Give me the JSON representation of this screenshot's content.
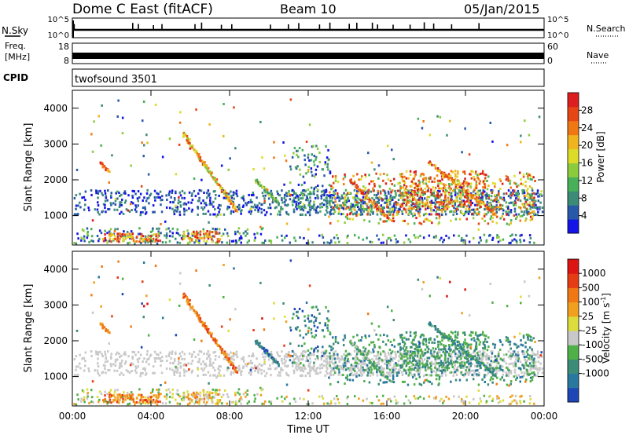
{
  "header": {
    "station": "Dome C East (fitACF)",
    "beam": "Beam 10",
    "date": "05/Jan/2015"
  },
  "strips": {
    "nsky": {
      "label": "N.Sky",
      "ticks": [
        "10^5",
        "10^0"
      ]
    },
    "freq": {
      "label_line1": "Freq.",
      "label_line2": "[MHz]",
      "ticks": [
        "18",
        "8"
      ]
    },
    "nsearch": {
      "label": "N.Search",
      "ticks": [
        "10^5",
        "10^0"
      ]
    },
    "nave": {
      "label": "Nave",
      "ticks": [
        "60",
        "0"
      ]
    },
    "cpid": {
      "label": "CPID",
      "value": "twofsound 3501"
    }
  },
  "chart_data": [
    {
      "type": "heatmap",
      "name": "power",
      "xlabel": "",
      "ylabel": "Slant Range [km]",
      "xlim": [
        0,
        24
      ],
      "ylim": [
        180,
        4500
      ],
      "yticks": [
        1000,
        2000,
        3000,
        4000
      ],
      "colorbar": {
        "label": "Power [dB]",
        "ticks": [
          4,
          8,
          12,
          16,
          20,
          24,
          28
        ],
        "range": [
          0,
          32
        ],
        "colors": [
          "#1414e6",
          "#2858a8",
          "#3c8a78",
          "#48b058",
          "#8ccc3c",
          "#dcdc28",
          "#f0b41e",
          "#f07814",
          "#e64614",
          "#dc1e1e"
        ]
      }
    },
    {
      "type": "heatmap",
      "name": "velocity",
      "xlabel": "Time UT",
      "ylabel": "Slant Range [km]",
      "xlim": [
        0,
        24
      ],
      "ylim": [
        180,
        4500
      ],
      "yticks": [
        1000,
        2000,
        3000,
        4000
      ],
      "xticklabels": [
        "00:00",
        "04:00",
        "08:00",
        "12:00",
        "16:00",
        "20:00",
        "00:00"
      ],
      "colorbar": {
        "label": "Velocity [m s^-1]",
        "ticks": [
          "1000",
          "500",
          "100",
          "25",
          "-25",
          "-100",
          "-500",
          "-1000"
        ],
        "colors": [
          "#1e46b4",
          "#2878a0",
          "#3c8c78",
          "#50b048",
          "#c8c8c8",
          "#dcdc3c",
          "#f0a01e",
          "#f07814",
          "#e63c14",
          "#dc1414"
        ]
      }
    }
  ]
}
